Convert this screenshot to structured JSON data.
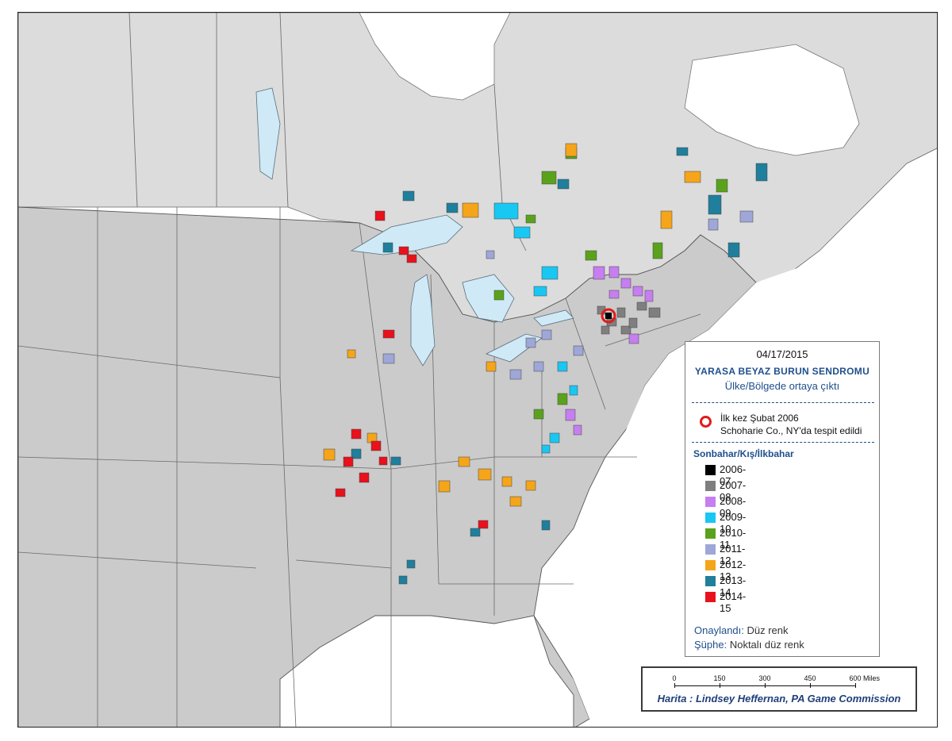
{
  "map": {
    "date": "04/17/2015",
    "title": "YARASA BEYAZ BURUN SENDROMU",
    "subtitle": "Ülke/Bölgede ortaya çıktı",
    "first_detection": {
      "line1": "İlk kez Şubat 2006",
      "line2": "Schoharie Co., NY'da tespit edildi",
      "marker_color": "#e21b1b"
    },
    "season_heading": "Sonbahar/Kış/İlkbahar",
    "seasons": [
      {
        "label": "2006-07",
        "color": "#000000"
      },
      {
        "label": "2007-08",
        "color": "#7f7f7f"
      },
      {
        "label": "2008-09",
        "color": "#c67ef0"
      },
      {
        "label": "2009-10",
        "color": "#19c7f3"
      },
      {
        "label": "2010-11",
        "color": "#5aa21c"
      },
      {
        "label": "2011-12",
        "color": "#9ea7d8"
      },
      {
        "label": "2012-13",
        "color": "#f5a51a"
      },
      {
        "label": "2013-14",
        "color": "#1f7f9c"
      },
      {
        "label": "2014-15",
        "color": "#e8111c"
      }
    ],
    "notes": {
      "confirmed_key": "Onaylandı:",
      "confirmed_value": "Düz renk",
      "suspect_key": "Şüphe:",
      "suspect_value": "Noktalı düz renk"
    },
    "scale": {
      "ticks": [
        "0",
        "150",
        "300",
        "450",
        "600"
      ],
      "unit": "Miles"
    },
    "credit": "Harita : Lindsey Heffernan, PA Game Commission",
    "colors": {
      "land_usa": "#cbcbcb",
      "land_canada": "#dcdcdc",
      "water": "#cfeaf6",
      "border": "#555555",
      "accent": "#1f4f8c"
    }
  }
}
